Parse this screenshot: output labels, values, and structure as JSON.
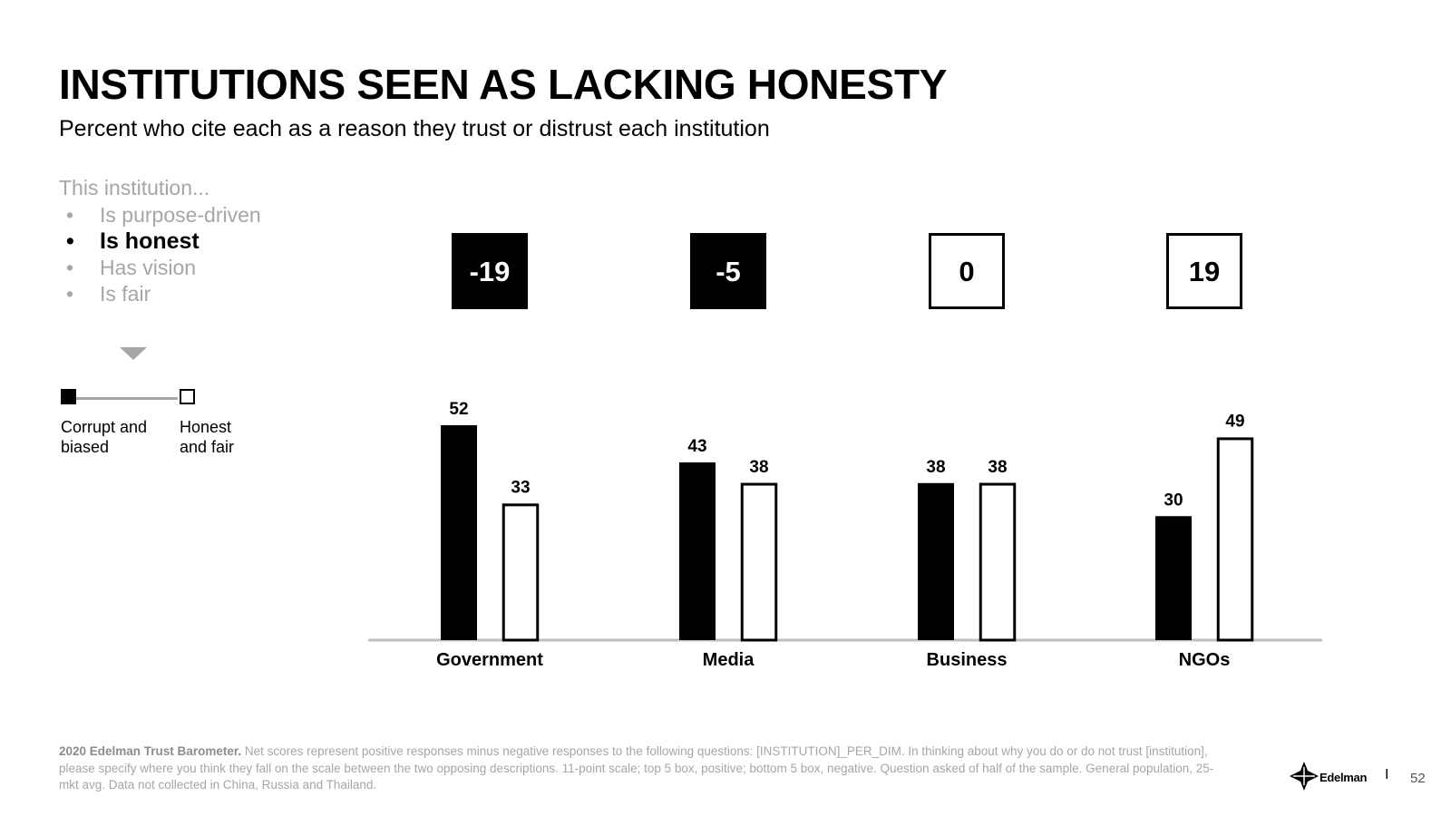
{
  "title": "INSTITUTIONS SEEN AS LACKING HONESTY",
  "subtitle": "Percent who cite each as a reason they trust or distrust each institution",
  "dimensions": {
    "intro": "This institution...",
    "bullet": "•",
    "items": [
      {
        "label": "Is purpose-driven",
        "active": false
      },
      {
        "label": "Is honest",
        "active": true
      },
      {
        "label": "Has vision",
        "active": false
      },
      {
        "label": "Is fair",
        "active": false
      }
    ]
  },
  "legend": {
    "negative_label": "Corrupt and biased",
    "positive_label": "Honest and fair"
  },
  "chart_data": {
    "type": "bar",
    "categories": [
      "Government",
      "Media",
      "Business",
      "NGOs"
    ],
    "series": [
      {
        "name": "Corrupt and biased",
        "values": [
          52,
          43,
          38,
          30
        ],
        "color": "#000000"
      },
      {
        "name": "Honest and fair",
        "values": [
          33,
          38,
          38,
          49
        ],
        "color": "#ffffff"
      }
    ],
    "net_scores": [
      "-19",
      "-5",
      "0",
      "19"
    ],
    "net_box_styles": [
      "filled",
      "filled",
      "outline",
      "outline"
    ],
    "ylim": [
      0,
      52
    ],
    "grid": false,
    "legend_position": "left"
  },
  "footnote": {
    "bold": "2020 Edelman Trust Barometer.",
    "text": " Net scores represent positive responses minus negative responses to the following questions: [INSTITUTION]_PER_DIM. In thinking about why you do or do not trust [institution], please specify where you think they fall on the scale between the two opposing descriptions. 11-point scale; top 5 box, positive; bottom 5 box, negative. Question asked of half of the sample. General population, 25-mkt avg. Data not collected in China, Russia and Thailand."
  },
  "brand": {
    "name": "Edelman",
    "separator": "I",
    "page_number": "52"
  }
}
